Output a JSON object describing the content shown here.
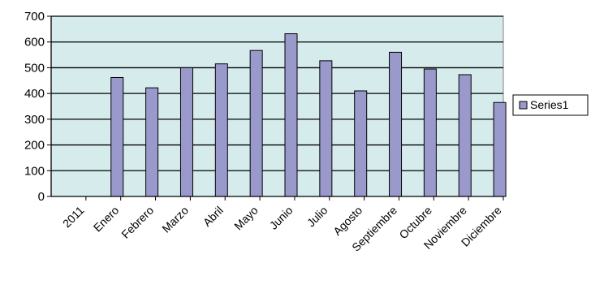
{
  "chart_data": {
    "type": "bar",
    "categories": [
      "2011",
      "Enero",
      "Febrero",
      "Marzo",
      "Abril",
      "Mayo",
      "Junio",
      "Julio",
      "Agosto",
      "Septiembre",
      "Octubre",
      "Noviembre",
      "Diciembre"
    ],
    "series": [
      {
        "name": "Series1",
        "values": [
          null,
          462,
          422,
          500,
          515,
          567,
          632,
          527,
          410,
          560,
          495,
          473,
          365
        ]
      }
    ],
    "title": "",
    "xlabel": "",
    "ylabel": "",
    "ylim": [
      0,
      700
    ],
    "yticks": [
      0,
      100,
      200,
      300,
      400,
      500,
      600,
      700
    ],
    "grid": true,
    "legend_position": "right",
    "colors": {
      "plot_background": "#d6ecec",
      "bar_fill": "#9999cc",
      "bar_stroke": "#000000",
      "gridline": "#000000",
      "axis": "#000000"
    }
  }
}
